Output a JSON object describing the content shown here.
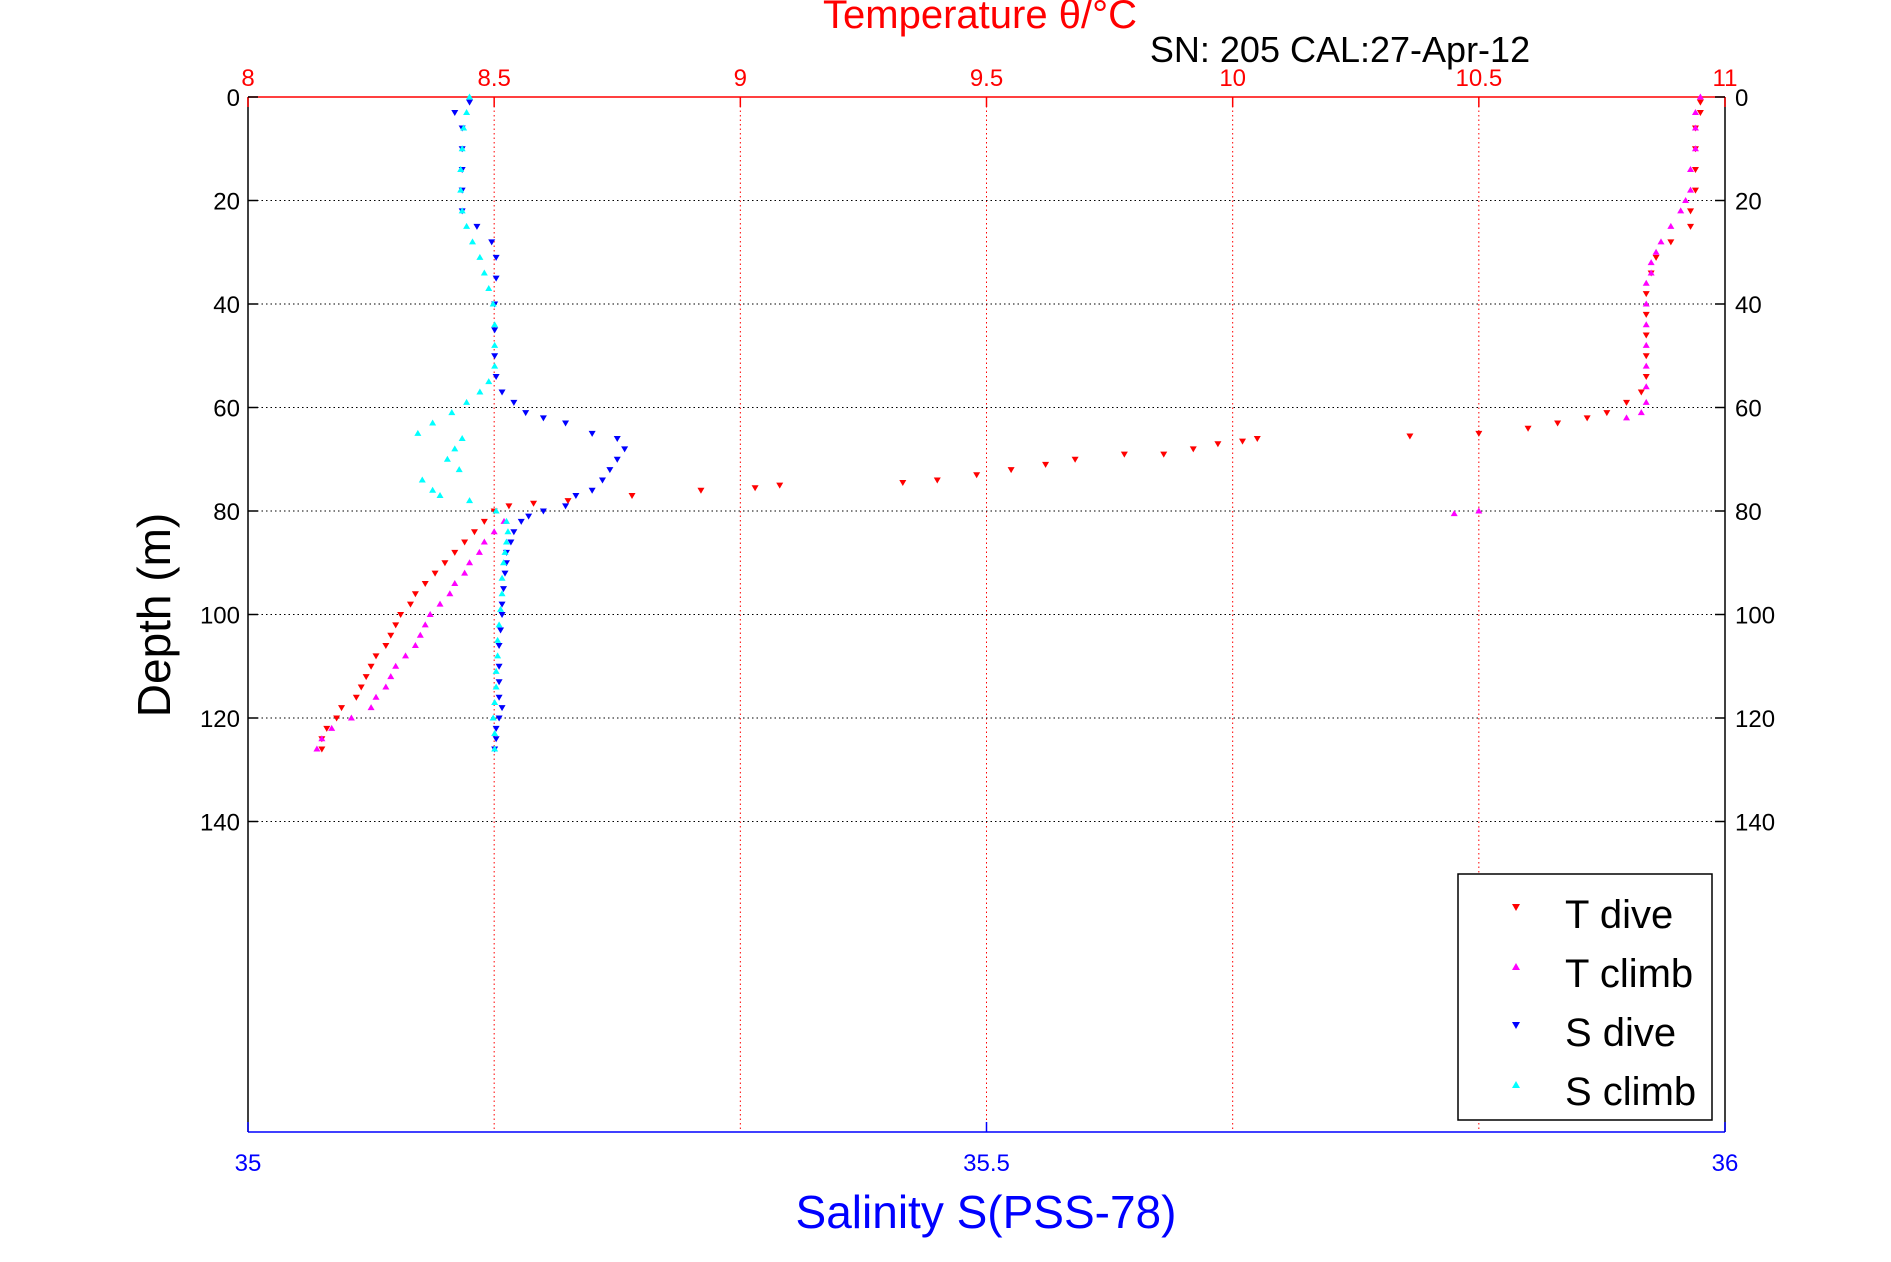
{
  "chart_data": {
    "type": "scatter",
    "title": "Temperature θ/°C",
    "subtitle": "SN: 205  CAL:27-Apr-12",
    "ylabel": "Depth (m)",
    "xlabel_bottom": "Salinity S(PSS-78)",
    "x_top": {
      "range": [
        8,
        11
      ],
      "ticks": [
        8,
        8.5,
        9,
        9.5,
        10,
        10.5,
        11
      ],
      "tick_labels": [
        "8",
        "8.5",
        "9",
        "9.5",
        "10",
        "10.5",
        "11"
      ],
      "color": "#ff0000"
    },
    "x_bottom": {
      "range": [
        35,
        36
      ],
      "ticks": [
        35,
        35.5,
        36
      ],
      "tick_labels": [
        "35",
        "35.5",
        "36"
      ],
      "color": "#0000ff"
    },
    "y": {
      "range": [
        0,
        200
      ],
      "reversed": true,
      "ticks": [
        0,
        20,
        40,
        60,
        80,
        100,
        120,
        140
      ],
      "tick_labels": [
        "0",
        "20",
        "40",
        "60",
        "80",
        "100",
        "120",
        "140"
      ]
    },
    "grid": true,
    "legend": "bottom-right",
    "series": [
      {
        "name": "T dive",
        "axis": "top",
        "color": "#ff0000",
        "marker": "triangle-down",
        "points": [
          [
            10.95,
            1
          ],
          [
            10.95,
            3
          ],
          [
            10.94,
            6
          ],
          [
            10.94,
            10
          ],
          [
            10.94,
            14
          ],
          [
            10.94,
            18
          ],
          [
            10.93,
            22
          ],
          [
            10.93,
            25
          ],
          [
            10.89,
            28
          ],
          [
            10.86,
            31
          ],
          [
            10.85,
            34
          ],
          [
            10.84,
            38
          ],
          [
            10.84,
            42
          ],
          [
            10.84,
            46
          ],
          [
            10.84,
            50
          ],
          [
            10.84,
            54
          ],
          [
            10.83,
            57
          ],
          [
            10.8,
            59
          ],
          [
            10.76,
            61
          ],
          [
            10.72,
            62
          ],
          [
            10.66,
            63
          ],
          [
            10.6,
            64
          ],
          [
            10.5,
            65
          ],
          [
            10.36,
            65.5
          ],
          [
            10.05,
            66
          ],
          [
            10.02,
            66.5
          ],
          [
            9.97,
            67
          ],
          [
            9.92,
            68
          ],
          [
            9.86,
            69
          ],
          [
            9.78,
            69
          ],
          [
            9.68,
            70
          ],
          [
            9.62,
            71
          ],
          [
            9.55,
            72
          ],
          [
            9.48,
            73
          ],
          [
            9.4,
            74
          ],
          [
            9.33,
            74.5
          ],
          [
            9.08,
            75
          ],
          [
            9.03,
            75.5
          ],
          [
            8.92,
            76
          ],
          [
            8.78,
            77
          ],
          [
            8.65,
            78
          ],
          [
            8.58,
            78.5
          ],
          [
            8.53,
            79
          ],
          [
            8.5,
            80
          ],
          [
            8.48,
            82
          ],
          [
            8.46,
            84
          ],
          [
            8.44,
            86
          ],
          [
            8.42,
            88
          ],
          [
            8.4,
            90
          ],
          [
            8.38,
            92
          ],
          [
            8.36,
            94
          ],
          [
            8.34,
            96
          ],
          [
            8.33,
            98
          ],
          [
            8.31,
            100
          ],
          [
            8.3,
            102
          ],
          [
            8.29,
            104
          ],
          [
            8.28,
            106
          ],
          [
            8.26,
            108
          ],
          [
            8.25,
            110
          ],
          [
            8.24,
            112
          ],
          [
            8.23,
            114
          ],
          [
            8.22,
            116
          ],
          [
            8.19,
            118
          ],
          [
            8.18,
            120
          ],
          [
            8.16,
            122
          ],
          [
            8.15,
            124
          ],
          [
            8.15,
            126
          ]
        ]
      },
      {
        "name": "T climb",
        "axis": "top",
        "color": "#ff00ff",
        "marker": "triangle-up",
        "points": [
          [
            10.95,
            0
          ],
          [
            10.94,
            3
          ],
          [
            10.94,
            6
          ],
          [
            10.94,
            10
          ],
          [
            10.93,
            14
          ],
          [
            10.93,
            18
          ],
          [
            10.92,
            20
          ],
          [
            10.91,
            22
          ],
          [
            10.89,
            25
          ],
          [
            10.87,
            28
          ],
          [
            10.86,
            30
          ],
          [
            10.85,
            32
          ],
          [
            10.85,
            34
          ],
          [
            10.84,
            36
          ],
          [
            10.84,
            40
          ],
          [
            10.84,
            44
          ],
          [
            10.84,
            48
          ],
          [
            10.84,
            52
          ],
          [
            10.84,
            56
          ],
          [
            10.84,
            59
          ],
          [
            10.83,
            61
          ],
          [
            10.8,
            62
          ],
          [
            10.5,
            80
          ],
          [
            10.45,
            80.5
          ],
          [
            8.52,
            82
          ],
          [
            8.5,
            84
          ],
          [
            8.48,
            86
          ],
          [
            8.47,
            88
          ],
          [
            8.45,
            90
          ],
          [
            8.44,
            92
          ],
          [
            8.42,
            94
          ],
          [
            8.41,
            96
          ],
          [
            8.39,
            98
          ],
          [
            8.37,
            100
          ],
          [
            8.36,
            102
          ],
          [
            8.35,
            104
          ],
          [
            8.34,
            106
          ],
          [
            8.32,
            108
          ],
          [
            8.3,
            110
          ],
          [
            8.29,
            112
          ],
          [
            8.28,
            114
          ],
          [
            8.26,
            116
          ],
          [
            8.25,
            118
          ],
          [
            8.21,
            120
          ],
          [
            8.17,
            122
          ],
          [
            8.15,
            124
          ],
          [
            8.14,
            126
          ]
        ]
      },
      {
        "name": "S dive",
        "axis": "bottom",
        "color": "#0000ff",
        "marker": "triangle-down",
        "points": [
          [
            35.15,
            1
          ],
          [
            35.14,
            3
          ],
          [
            35.145,
            6
          ],
          [
            35.145,
            10
          ],
          [
            35.145,
            14
          ],
          [
            35.145,
            18
          ],
          [
            35.145,
            22
          ],
          [
            35.155,
            25
          ],
          [
            35.165,
            28
          ],
          [
            35.168,
            31
          ],
          [
            35.168,
            35
          ],
          [
            35.167,
            40
          ],
          [
            35.167,
            45
          ],
          [
            35.167,
            50
          ],
          [
            35.168,
            54
          ],
          [
            35.172,
            57
          ],
          [
            35.18,
            59
          ],
          [
            35.188,
            61
          ],
          [
            35.2,
            62
          ],
          [
            35.215,
            63
          ],
          [
            35.233,
            65
          ],
          [
            35.25,
            66
          ],
          [
            35.255,
            68
          ],
          [
            35.25,
            70
          ],
          [
            35.245,
            72
          ],
          [
            35.24,
            74
          ],
          [
            35.233,
            76
          ],
          [
            35.222,
            77
          ],
          [
            35.215,
            79
          ],
          [
            35.2,
            80
          ],
          [
            35.19,
            81
          ],
          [
            35.185,
            82
          ],
          [
            35.18,
            84
          ],
          [
            35.178,
            86
          ],
          [
            35.175,
            88
          ],
          [
            35.175,
            90
          ],
          [
            35.174,
            92
          ],
          [
            35.173,
            95
          ],
          [
            35.172,
            98
          ],
          [
            35.172,
            100
          ],
          [
            35.171,
            103
          ],
          [
            35.17,
            106
          ],
          [
            35.17,
            110
          ],
          [
            35.17,
            113
          ],
          [
            35.17,
            116
          ],
          [
            35.172,
            118
          ],
          [
            35.17,
            120
          ],
          [
            35.168,
            122
          ],
          [
            35.168,
            124
          ],
          [
            35.167,
            126
          ]
        ]
      },
      {
        "name": "S climb",
        "axis": "bottom",
        "color": "#00ffff",
        "marker": "triangle-up",
        "points": [
          [
            35.15,
            0
          ],
          [
            35.148,
            3
          ],
          [
            35.146,
            6
          ],
          [
            35.145,
            10
          ],
          [
            35.144,
            14
          ],
          [
            35.144,
            18
          ],
          [
            35.145,
            22
          ],
          [
            35.148,
            25
          ],
          [
            35.152,
            28
          ],
          [
            35.157,
            31
          ],
          [
            35.16,
            34
          ],
          [
            35.163,
            37
          ],
          [
            35.166,
            40
          ],
          [
            35.167,
            44
          ],
          [
            35.167,
            48
          ],
          [
            35.167,
            52
          ],
          [
            35.163,
            55
          ],
          [
            35.157,
            57
          ],
          [
            35.148,
            59
          ],
          [
            35.138,
            61
          ],
          [
            35.125,
            63
          ],
          [
            35.115,
            65
          ],
          [
            35.145,
            66
          ],
          [
            35.14,
            68
          ],
          [
            35.135,
            70
          ],
          [
            35.143,
            72
          ],
          [
            35.118,
            74
          ],
          [
            35.125,
            76
          ],
          [
            35.13,
            77
          ],
          [
            35.15,
            78
          ],
          [
            35.168,
            80
          ],
          [
            35.175,
            82
          ],
          [
            35.176,
            84
          ],
          [
            35.175,
            86
          ],
          [
            35.174,
            88
          ],
          [
            35.173,
            90
          ],
          [
            35.172,
            93
          ],
          [
            35.172,
            96
          ],
          [
            35.171,
            99
          ],
          [
            35.17,
            102
          ],
          [
            35.169,
            105
          ],
          [
            35.169,
            108
          ],
          [
            35.168,
            111
          ],
          [
            35.168,
            114
          ],
          [
            35.167,
            117
          ],
          [
            35.166,
            120
          ],
          [
            35.167,
            123
          ],
          [
            35.167,
            126
          ]
        ]
      }
    ]
  }
}
